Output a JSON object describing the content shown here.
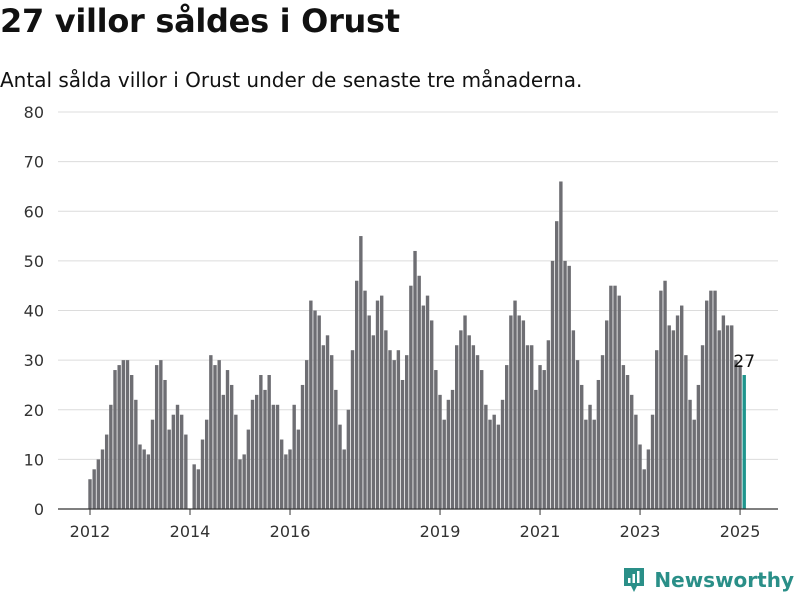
{
  "header": {
    "title": "27 villor såldes i Orust",
    "subtitle": "Antal sålda villor i Orust under de senaste tre månaderna."
  },
  "brand": {
    "name": "Newsworthy"
  },
  "colors": {
    "bars": "#6e6e73",
    "highlight": "#1f958d",
    "grid": "#dcdcdc",
    "axis": "#333333"
  },
  "chart_data": {
    "type": "bar",
    "ylim": [
      0,
      80
    ],
    "yticks": [
      0,
      10,
      20,
      30,
      40,
      50,
      60,
      70,
      80
    ],
    "xticks": [
      {
        "label": "2012",
        "date": "2012-01"
      },
      {
        "label": "2014",
        "date": "2014-01"
      },
      {
        "label": "2016",
        "date": "2016-01"
      },
      {
        "label": "2019",
        "date": "2019-01"
      },
      {
        "label": "2021",
        "date": "2021-01"
      },
      {
        "label": "2023",
        "date": "2023-01"
      },
      {
        "label": "2025",
        "date": "2025-01"
      }
    ],
    "start": "2012-01",
    "highlight_label": "27",
    "values": [
      6,
      8,
      10,
      12,
      15,
      21,
      28,
      29,
      30,
      30,
      27,
      22,
      13,
      12,
      11,
      18,
      29,
      30,
      26,
      16,
      19,
      21,
      19,
      15,
      0,
      9,
      8,
      14,
      18,
      31,
      29,
      30,
      23,
      28,
      25,
      19,
      10,
      11,
      16,
      22,
      23,
      27,
      24,
      27,
      21,
      21,
      14,
      11,
      12,
      21,
      16,
      25,
      30,
      42,
      40,
      39,
      33,
      35,
      31,
      24,
      17,
      12,
      20,
      32,
      46,
      55,
      44,
      39,
      35,
      42,
      43,
      36,
      32,
      30,
      32,
      26,
      31,
      45,
      52,
      47,
      41,
      43,
      38,
      28,
      23,
      18,
      22,
      24,
      33,
      36,
      39,
      35,
      33,
      31,
      28,
      21,
      18,
      19,
      17,
      22,
      29,
      39,
      42,
      39,
      38,
      33,
      33,
      24,
      29,
      28,
      34,
      50,
      58,
      66,
      50,
      49,
      36,
      30,
      25,
      18,
      21,
      18,
      26,
      31,
      38,
      45,
      45,
      43,
      29,
      27,
      23,
      19,
      13,
      8,
      12,
      19,
      32,
      44,
      46,
      37,
      36,
      39,
      41,
      31,
      22,
      18,
      25,
      33,
      42,
      44,
      44,
      36,
      39,
      37,
      37,
      30,
      29,
      27
    ]
  }
}
